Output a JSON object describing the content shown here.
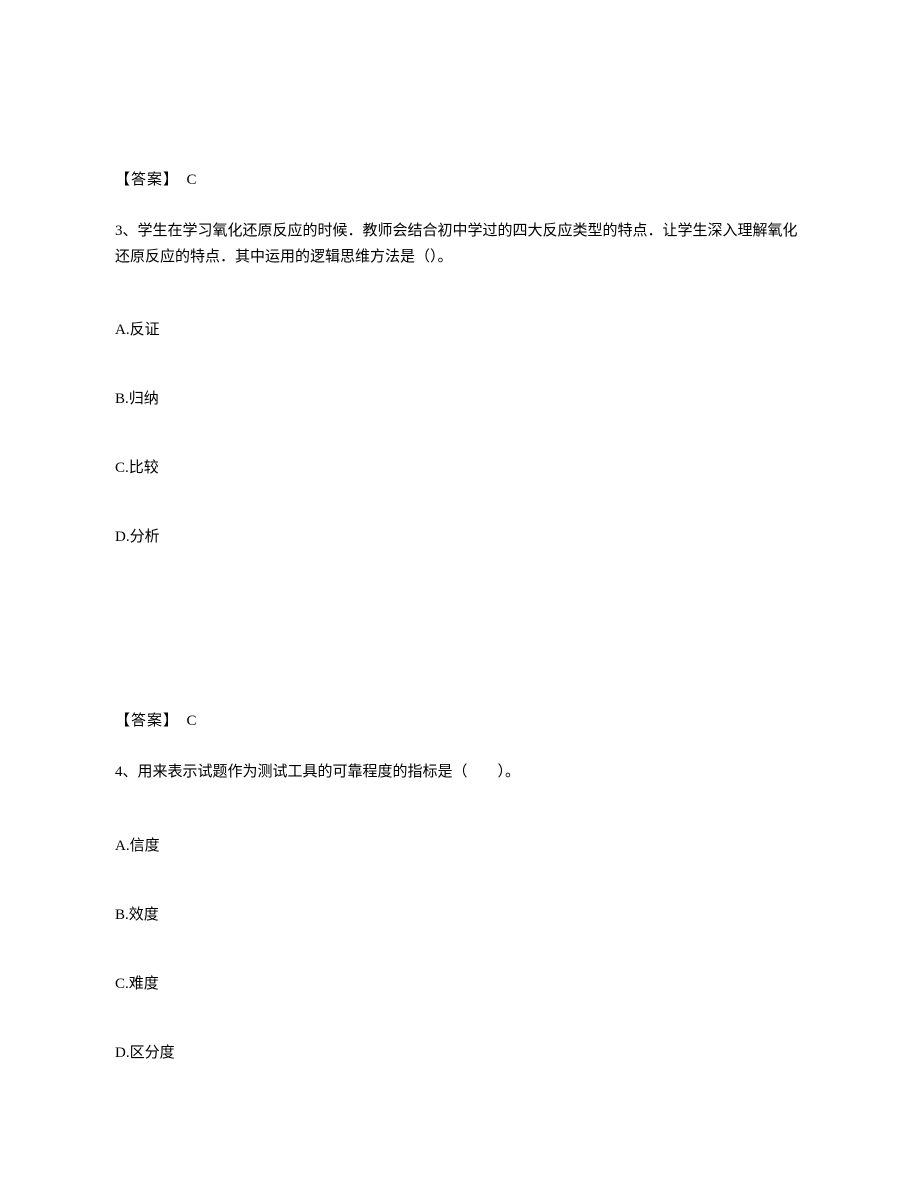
{
  "q2_answer_label": "【答案】",
  "q2_answer_value": "C",
  "q3_number": "3、",
  "q3_text": "学生在学习氧化还原反应的时候．教师会结合初中学过的四大反应类型的特点．让学生深入理解氧化还原反应的特点．其中运用的逻辑思维方法是（）。",
  "q3_options": {
    "a": "A.反证",
    "b": "B.归纳",
    "c": "C.比较",
    "d": "D.分析"
  },
  "q3_answer_label": "【答案】",
  "q3_answer_value": "C",
  "q4_number": "4、",
  "q4_text": "用来表示试题作为测试工具的可靠程度的指标是（　　）。",
  "q4_options": {
    "a": "A.信度",
    "b": "B.效度",
    "c": "C.难度",
    "d": "D.区分度"
  },
  "colors": {
    "text": "#000000",
    "background": "#ffffff"
  },
  "fonts": {
    "body_size": 15,
    "family": "SimSun"
  }
}
